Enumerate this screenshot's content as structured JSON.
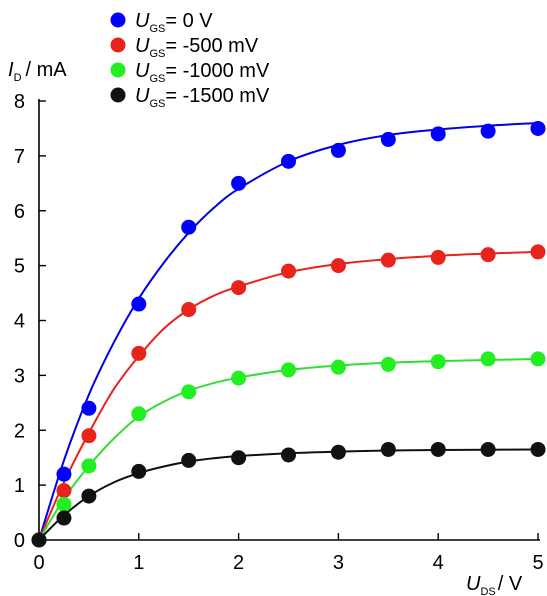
{
  "chart_data": {
    "type": "scatter",
    "x_axis": {
      "variable": "U",
      "subscript": "DS",
      "unit": "/ V",
      "range": [
        0,
        5
      ],
      "ticks": [
        "0",
        "1",
        "2",
        "3",
        "4",
        "5"
      ]
    },
    "y_axis": {
      "variable": "I",
      "subscript": "D",
      "unit": "/ mA",
      "range": [
        0,
        8
      ],
      "ticks": [
        "0",
        "1",
        "2",
        "3",
        "4",
        "5",
        "6",
        "7",
        "8"
      ]
    },
    "legend": {
      "placement": "top-left",
      "variable": "U",
      "subscript": "GS"
    },
    "grid": false,
    "series": [
      {
        "name": "= 0 V",
        "marker_color": "#0000ff",
        "line_color": "#0000e6",
        "x": [
          0,
          0.25,
          0.5,
          1,
          1.5,
          2,
          2.5,
          3,
          3.5,
          4,
          4.5,
          5
        ],
        "y": [
          0,
          1.2,
          2.4,
          4.3,
          5.7,
          6.5,
          6.9,
          7.1,
          7.3,
          7.4,
          7.45,
          7.5
        ],
        "fit_x": [
          0,
          0.25,
          0.5,
          0.75,
          1,
          1.25,
          1.5,
          1.75,
          2,
          2.5,
          3,
          3.5,
          4,
          4.5,
          5
        ],
        "fit_y": [
          0,
          1.45,
          2.65,
          3.6,
          4.4,
          5.05,
          5.6,
          6.05,
          6.4,
          6.9,
          7.2,
          7.38,
          7.48,
          7.55,
          7.6
        ]
      },
      {
        "name": "= -500 mV",
        "marker_color": "#e8231b",
        "line_color": "#e8231b",
        "x": [
          0,
          0.25,
          0.5,
          1,
          1.5,
          2,
          2.5,
          3,
          3.5,
          4,
          4.5,
          5
        ],
        "y": [
          0,
          0.9,
          1.9,
          3.4,
          4.2,
          4.6,
          4.9,
          5.0,
          5.1,
          5.15,
          5.2,
          5.25
        ],
        "fit_x": [
          0,
          0.25,
          0.5,
          0.75,
          1,
          1.25,
          1.5,
          1.75,
          2,
          2.5,
          3,
          3.5,
          4,
          4.5,
          5
        ],
        "fit_y": [
          0,
          1.05,
          1.95,
          2.75,
          3.35,
          3.85,
          4.2,
          4.45,
          4.62,
          4.88,
          5.03,
          5.12,
          5.18,
          5.22,
          5.25
        ]
      },
      {
        "name": "= -1000 mV",
        "marker_color": "#22ee22",
        "line_color": "#33dd33",
        "x": [
          0,
          0.25,
          0.5,
          1,
          1.5,
          2,
          2.5,
          3,
          3.5,
          4,
          4.5,
          5
        ],
        "y": [
          0,
          0.65,
          1.35,
          2.3,
          2.7,
          2.95,
          3.1,
          3.15,
          3.2,
          3.25,
          3.3,
          3.3
        ],
        "fit_x": [
          0,
          0.25,
          0.5,
          0.75,
          1,
          1.25,
          1.5,
          1.75,
          2,
          2.5,
          3,
          3.5,
          4,
          4.5,
          5
        ],
        "fit_y": [
          0,
          0.75,
          1.35,
          1.85,
          2.25,
          2.52,
          2.72,
          2.86,
          2.96,
          3.1,
          3.18,
          3.23,
          3.26,
          3.28,
          3.3
        ]
      },
      {
        "name": "= -1500 mV",
        "marker_color": "#111111",
        "line_color": "#111111",
        "x": [
          0,
          0.25,
          0.5,
          1,
          1.5,
          2,
          2.5,
          3,
          3.5,
          4,
          4.5,
          5
        ],
        "y": [
          0,
          0.4,
          0.8,
          1.25,
          1.45,
          1.5,
          1.55,
          1.6,
          1.65,
          1.65,
          1.65,
          1.65
        ],
        "fit_x": [
          0,
          0.25,
          0.5,
          0.75,
          1,
          1.25,
          1.5,
          1.75,
          2,
          2.5,
          3,
          3.5,
          4,
          4.5,
          5
        ],
        "fit_y": [
          0,
          0.45,
          0.8,
          1.05,
          1.22,
          1.34,
          1.43,
          1.49,
          1.53,
          1.58,
          1.61,
          1.63,
          1.64,
          1.645,
          1.65
        ]
      }
    ]
  }
}
